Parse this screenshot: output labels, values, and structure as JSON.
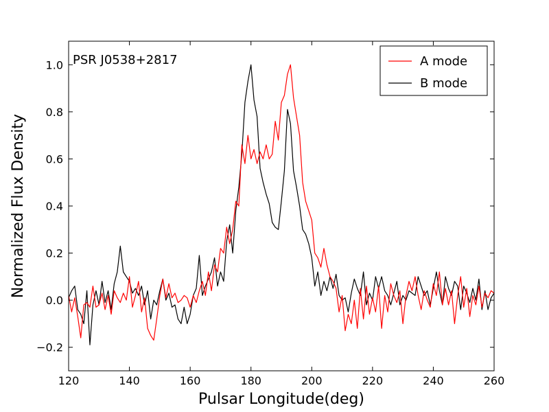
{
  "chart_data": {
    "type": "line",
    "annotation": "PSR J0538+2817",
    "xlabel": "Pulsar Longitude(deg)",
    "ylabel": "Normalized Flux Density",
    "xlim": [
      120,
      260
    ],
    "ylim": [
      -0.3,
      1.1
    ],
    "xticks": [
      120,
      140,
      160,
      180,
      200,
      220,
      240,
      260
    ],
    "yticks": [
      -0.2,
      0.0,
      0.2,
      0.4,
      0.6,
      0.8,
      1.0
    ],
    "xtick_labels": [
      "120",
      "140",
      "160",
      "180",
      "200",
      "220",
      "240",
      "260"
    ],
    "ytick_labels": [
      "−0.2",
      "0.0",
      "0.2",
      "0.4",
      "0.6",
      "0.8",
      "1.0"
    ],
    "legend_position": "top-right",
    "grid": false,
    "series": [
      {
        "name": "A mode",
        "color": "#ff0000",
        "points": [
          [
            120,
            0.02
          ],
          [
            121,
            -0.05
          ],
          [
            122,
            0.01
          ],
          [
            123,
            -0.07
          ],
          [
            124,
            -0.16
          ],
          [
            125,
            -0.02
          ],
          [
            126,
            -0.01
          ],
          [
            127,
            -0.03
          ],
          [
            128,
            0.06
          ],
          [
            129,
            -0.03
          ],
          [
            130,
            -0.02
          ],
          [
            131,
            0.03
          ],
          [
            132,
            -0.04
          ],
          [
            133,
            0.02
          ],
          [
            134,
            -0.06
          ],
          [
            135,
            0.04
          ],
          [
            136,
            0.01
          ],
          [
            137,
            -0.01
          ],
          [
            138,
            0.03
          ],
          [
            139,
            0.0
          ],
          [
            140,
            0.1
          ],
          [
            141,
            -0.03
          ],
          [
            142,
            0.02
          ],
          [
            143,
            0.08
          ],
          [
            144,
            -0.05
          ],
          [
            145,
            0.01
          ],
          [
            146,
            -0.12
          ],
          [
            147,
            -0.15
          ],
          [
            148,
            -0.17
          ],
          [
            149,
            -0.08
          ],
          [
            150,
            0.02
          ],
          [
            151,
            0.09
          ],
          [
            152,
            0.01
          ],
          [
            153,
            0.07
          ],
          [
            154,
            0.01
          ],
          [
            155,
            0.03
          ],
          [
            156,
            -0.01
          ],
          [
            157,
            0.0
          ],
          [
            158,
            0.02
          ],
          [
            159,
            0.01
          ],
          [
            160,
            -0.03
          ],
          [
            161,
            0.02
          ],
          [
            162,
            -0.01
          ],
          [
            163,
            0.04
          ],
          [
            164,
            0.08
          ],
          [
            165,
            0.02
          ],
          [
            166,
            0.12
          ],
          [
            167,
            0.04
          ],
          [
            168,
            0.15
          ],
          [
            169,
            0.12
          ],
          [
            170,
            0.22
          ],
          [
            171,
            0.2
          ],
          [
            172,
            0.31
          ],
          [
            173,
            0.24
          ],
          [
            174,
            0.3
          ],
          [
            175,
            0.42
          ],
          [
            176,
            0.4
          ],
          [
            177,
            0.66
          ],
          [
            178,
            0.58
          ],
          [
            179,
            0.7
          ],
          [
            180,
            0.6
          ],
          [
            181,
            0.64
          ],
          [
            182,
            0.58
          ],
          [
            183,
            0.63
          ],
          [
            184,
            0.6
          ],
          [
            185,
            0.66
          ],
          [
            186,
            0.6
          ],
          [
            187,
            0.62
          ],
          [
            188,
            0.76
          ],
          [
            189,
            0.68
          ],
          [
            190,
            0.84
          ],
          [
            191,
            0.87
          ],
          [
            192,
            0.96
          ],
          [
            193,
            1.0
          ],
          [
            194,
            0.86
          ],
          [
            195,
            0.78
          ],
          [
            196,
            0.7
          ],
          [
            197,
            0.5
          ],
          [
            198,
            0.42
          ],
          [
            199,
            0.38
          ],
          [
            200,
            0.34
          ],
          [
            201,
            0.2
          ],
          [
            202,
            0.18
          ],
          [
            203,
            0.14
          ],
          [
            204,
            0.22
          ],
          [
            205,
            0.15
          ],
          [
            206,
            0.1
          ],
          [
            207,
            0.08
          ],
          [
            208,
            0.05
          ],
          [
            209,
            -0.05
          ],
          [
            210,
            0.02
          ],
          [
            211,
            -0.13
          ],
          [
            212,
            -0.06
          ],
          [
            213,
            -0.1
          ],
          [
            214,
            0.0
          ],
          [
            215,
            -0.12
          ],
          [
            216,
            0.05
          ],
          [
            217,
            -0.08
          ],
          [
            218,
            0.06
          ],
          [
            219,
            -0.06
          ],
          [
            220,
            0.01
          ],
          [
            221,
            -0.05
          ],
          [
            222,
            0.06
          ],
          [
            223,
            -0.12
          ],
          [
            224,
            0.02
          ],
          [
            225,
            -0.05
          ],
          [
            226,
            0.07
          ],
          [
            227,
            0.02
          ],
          [
            228,
            -0.01
          ],
          [
            229,
            0.04
          ],
          [
            230,
            -0.1
          ],
          [
            231,
            0.02
          ],
          [
            232,
            0.08
          ],
          [
            233,
            0.04
          ],
          [
            234,
            0.1
          ],
          [
            235,
            0.02
          ],
          [
            236,
            -0.04
          ],
          [
            237,
            0.04
          ],
          [
            238,
            0.0
          ],
          [
            239,
            -0.03
          ],
          [
            240,
            0.07
          ],
          [
            241,
            0.02
          ],
          [
            242,
            0.12
          ],
          [
            243,
            -0.02
          ],
          [
            244,
            0.05
          ],
          [
            245,
            -0.02
          ],
          [
            246,
            0.04
          ],
          [
            247,
            -0.1
          ],
          [
            248,
            0.02
          ],
          [
            249,
            0.1
          ],
          [
            250,
            -0.03
          ],
          [
            251,
            0.05
          ],
          [
            252,
            -0.07
          ],
          [
            253,
            0.02
          ],
          [
            254,
            -0.02
          ],
          [
            255,
            0.06
          ],
          [
            256,
            -0.03
          ],
          [
            257,
            0.03
          ],
          [
            258,
            0.01
          ],
          [
            259,
            0.04
          ],
          [
            260,
            0.03
          ]
        ]
      },
      {
        "name": "B mode",
        "color": "#000000",
        "points": [
          [
            120,
            0.01
          ],
          [
            121,
            0.04
          ],
          [
            122,
            0.06
          ],
          [
            123,
            -0.04
          ],
          [
            124,
            -0.06
          ],
          [
            125,
            -0.1
          ],
          [
            126,
            0.04
          ],
          [
            127,
            -0.19
          ],
          [
            128,
            -0.02
          ],
          [
            129,
            0.04
          ],
          [
            130,
            -0.02
          ],
          [
            131,
            0.08
          ],
          [
            132,
            -0.01
          ],
          [
            133,
            0.04
          ],
          [
            134,
            -0.04
          ],
          [
            135,
            0.07
          ],
          [
            136,
            0.12
          ],
          [
            137,
            0.23
          ],
          [
            138,
            0.12
          ],
          [
            139,
            0.1
          ],
          [
            140,
            0.08
          ],
          [
            141,
            0.03
          ],
          [
            142,
            0.05
          ],
          [
            143,
            0.02
          ],
          [
            144,
            0.06
          ],
          [
            145,
            -0.02
          ],
          [
            146,
            0.04
          ],
          [
            147,
            -0.08
          ],
          [
            148,
            0.0
          ],
          [
            149,
            -0.02
          ],
          [
            150,
            0.04
          ],
          [
            151,
            0.09
          ],
          [
            152,
            0.0
          ],
          [
            153,
            0.03
          ],
          [
            154,
            -0.03
          ],
          [
            155,
            -0.02
          ],
          [
            156,
            -0.08
          ],
          [
            157,
            -0.1
          ],
          [
            158,
            -0.03
          ],
          [
            159,
            -0.1
          ],
          [
            160,
            -0.06
          ],
          [
            161,
            0.02
          ],
          [
            162,
            0.05
          ],
          [
            163,
            0.19
          ],
          [
            164,
            0.02
          ],
          [
            165,
            0.06
          ],
          [
            166,
            0.09
          ],
          [
            167,
            0.12
          ],
          [
            168,
            0.18
          ],
          [
            169,
            0.06
          ],
          [
            170,
            0.12
          ],
          [
            171,
            0.08
          ],
          [
            172,
            0.25
          ],
          [
            173,
            0.32
          ],
          [
            174,
            0.2
          ],
          [
            175,
            0.38
          ],
          [
            176,
            0.48
          ],
          [
            177,
            0.62
          ],
          [
            178,
            0.84
          ],
          [
            179,
            0.93
          ],
          [
            180,
            1.0
          ],
          [
            181,
            0.85
          ],
          [
            182,
            0.78
          ],
          [
            183,
            0.56
          ],
          [
            184,
            0.5
          ],
          [
            185,
            0.45
          ],
          [
            186,
            0.41
          ],
          [
            187,
            0.33
          ],
          [
            188,
            0.31
          ],
          [
            189,
            0.3
          ],
          [
            190,
            0.42
          ],
          [
            191,
            0.55
          ],
          [
            192,
            0.81
          ],
          [
            193,
            0.75
          ],
          [
            194,
            0.55
          ],
          [
            195,
            0.48
          ],
          [
            196,
            0.4
          ],
          [
            197,
            0.3
          ],
          [
            198,
            0.28
          ],
          [
            199,
            0.24
          ],
          [
            200,
            0.18
          ],
          [
            201,
            0.06
          ],
          [
            202,
            0.12
          ],
          [
            203,
            0.02
          ],
          [
            204,
            0.08
          ],
          [
            205,
            0.04
          ],
          [
            206,
            0.1
          ],
          [
            207,
            0.05
          ],
          [
            208,
            0.11
          ],
          [
            209,
            0.02
          ],
          [
            210,
            0.0
          ],
          [
            211,
            0.01
          ],
          [
            212,
            -0.05
          ],
          [
            213,
            0.03
          ],
          [
            214,
            0.09
          ],
          [
            215,
            0.05
          ],
          [
            216,
            0.02
          ],
          [
            217,
            0.12
          ],
          [
            218,
            -0.02
          ],
          [
            219,
            0.03
          ],
          [
            220,
            0.0
          ],
          [
            221,
            0.1
          ],
          [
            222,
            0.05
          ],
          [
            223,
            0.1
          ],
          [
            224,
            0.04
          ],
          [
            225,
            0.02
          ],
          [
            226,
            -0.02
          ],
          [
            227,
            0.03
          ],
          [
            228,
            0.08
          ],
          [
            229,
            -0.02
          ],
          [
            230,
            0.02
          ],
          [
            231,
            0.0
          ],
          [
            232,
            0.04
          ],
          [
            233,
            0.03
          ],
          [
            234,
            0.02
          ],
          [
            235,
            0.1
          ],
          [
            236,
            0.06
          ],
          [
            237,
            0.02
          ],
          [
            238,
            0.04
          ],
          [
            239,
            -0.02
          ],
          [
            240,
            0.05
          ],
          [
            241,
            0.12
          ],
          [
            242,
            0.04
          ],
          [
            243,
            -0.02
          ],
          [
            244,
            0.1
          ],
          [
            245,
            0.05
          ],
          [
            246,
            0.02
          ],
          [
            247,
            0.08
          ],
          [
            248,
            0.06
          ],
          [
            249,
            -0.04
          ],
          [
            250,
            0.06
          ],
          [
            251,
            0.03
          ],
          [
            252,
            -0.01
          ],
          [
            253,
            0.05
          ],
          [
            254,
            0.0
          ],
          [
            255,
            0.09
          ],
          [
            256,
            -0.04
          ],
          [
            257,
            0.04
          ],
          [
            258,
            -0.04
          ],
          [
            259,
            0.01
          ],
          [
            260,
            0.03
          ]
        ]
      }
    ]
  },
  "legend": {
    "entries": [
      {
        "label": "A mode",
        "color": "#ff0000"
      },
      {
        "label": "B mode",
        "color": "#000000"
      }
    ]
  }
}
